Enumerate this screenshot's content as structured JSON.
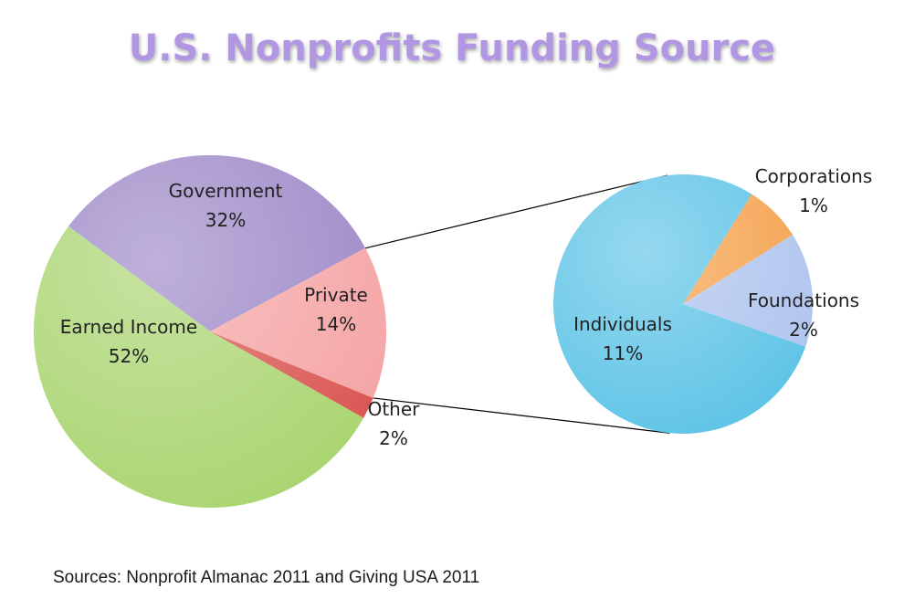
{
  "chart_data": {
    "type": "pie",
    "title": "U.S. Nonprofits Funding Source",
    "main_pie": {
      "slices": [
        {
          "label": "Government",
          "value": 32,
          "value_label": "32%",
          "color": "#9b86c6"
        },
        {
          "label": "Private",
          "value": 14,
          "value_label": "14%",
          "color": "#f5a3a3"
        },
        {
          "label": "Other",
          "value": 2,
          "value_label": "2%",
          "color": "#d9534f"
        },
        {
          "label": "Earned Income",
          "value": 52,
          "value_label": "52%",
          "color": "#a9d46f"
        }
      ]
    },
    "breakout_pie": {
      "source_slice": "Private",
      "slices": [
        {
          "label": "Corporations",
          "value": 1,
          "value_label": "1%",
          "color": "#f5a04a"
        },
        {
          "label": "Foundations",
          "value": 2,
          "value_label": "2%",
          "color": "#aec3ee"
        },
        {
          "label": "Individuals",
          "value": 11,
          "value_label": "11%",
          "color": "#5cc3e6"
        }
      ]
    },
    "source_note": "Sources: Nonprofit Almanac 2011 and Giving USA 2011"
  },
  "colors": {
    "title": "#b197e2",
    "connector": "#000000"
  }
}
